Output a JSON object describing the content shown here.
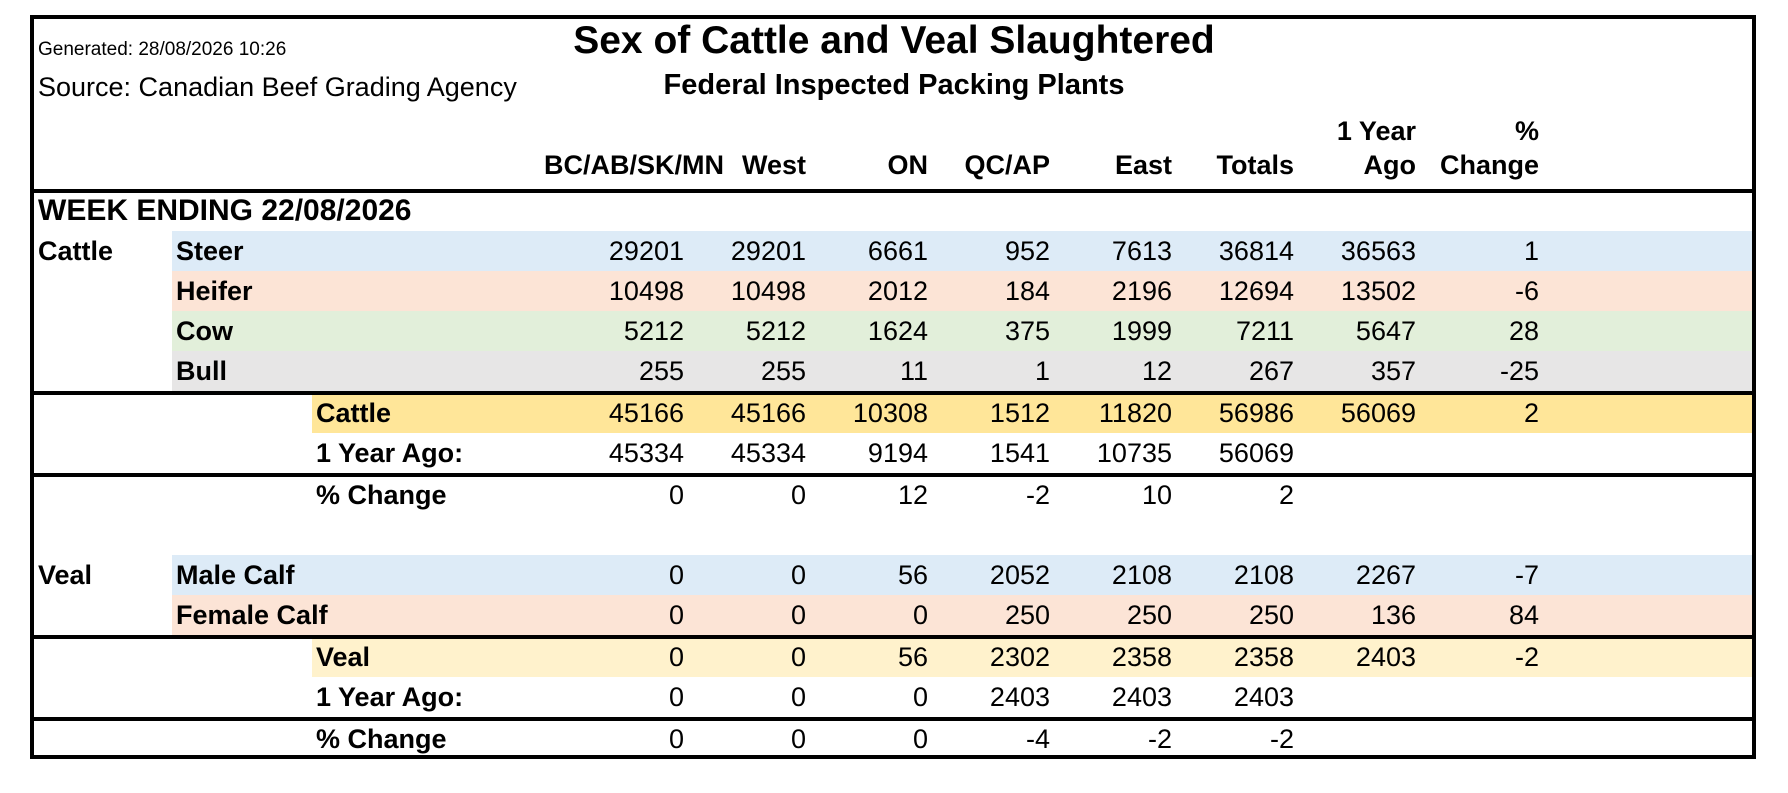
{
  "header": {
    "generated": "Generated: 28/08/2026 10:26",
    "source": "Source: Canadian Beef Grading Agency",
    "title": "Sex of Cattle and Veal Slaughtered",
    "subtitle": "Federal Inspected Packing Plants"
  },
  "columns": [
    {
      "line1": "",
      "line2": "BC/AB/SK/MN"
    },
    {
      "line1": "",
      "line2": "West"
    },
    {
      "line1": "",
      "line2": "ON"
    },
    {
      "line1": "",
      "line2": "QC/AP"
    },
    {
      "line1": "",
      "line2": "East"
    },
    {
      "line1": "",
      "line2": "Totals"
    },
    {
      "line1": "1 Year",
      "line2": "Ago"
    },
    {
      "line1": "%",
      "line2": "Change"
    }
  ],
  "week_ending": "WEEK ENDING 22/08/2026",
  "rows": [
    {
      "group": "Cattle",
      "label": "Steer",
      "indent": 1,
      "color": "#ddebf7",
      "values": [
        "29201",
        "29201",
        "6661",
        "952",
        "7613",
        "36814",
        "36563",
        "1"
      ]
    },
    {
      "group": "",
      "label": "Heifer",
      "indent": 1,
      "color": "#fce4d6",
      "values": [
        "10498",
        "10498",
        "2012",
        "184",
        "2196",
        "12694",
        "13502",
        "-6"
      ]
    },
    {
      "group": "",
      "label": "Cow",
      "indent": 1,
      "color": "#e2efda",
      "values": [
        "5212",
        "5212",
        "1624",
        "375",
        "1999",
        "7211",
        "5647",
        "28"
      ]
    },
    {
      "group": "",
      "label": "Bull",
      "indent": 1,
      "color": "#e7e6e6",
      "values": [
        "255",
        "255",
        "11",
        "1",
        "12",
        "267",
        "357",
        "-25"
      ]
    },
    {
      "group": "",
      "label": "Cattle",
      "indent": 2,
      "color": "#ffe699",
      "values": [
        "45166",
        "45166",
        "10308",
        "1512",
        "11820",
        "56986",
        "56069",
        "2"
      ]
    },
    {
      "group": "",
      "label": "1 Year Ago:",
      "indent": 2,
      "color": "",
      "values": [
        "45334",
        "45334",
        "9194",
        "1541",
        "10735",
        "56069",
        "",
        ""
      ]
    },
    {
      "group": "",
      "label": "% Change",
      "indent": 2,
      "color": "",
      "values": [
        "0",
        "0",
        "12",
        "-2",
        "10",
        "2",
        "",
        ""
      ]
    },
    {
      "group": "Veal",
      "label": "Male Calf",
      "indent": 1,
      "color": "#ddebf7",
      "values": [
        "0",
        "0",
        "56",
        "2052",
        "2108",
        "2108",
        "2267",
        "-7"
      ]
    },
    {
      "group": "",
      "label": "Female Calf",
      "indent": 1,
      "color": "#fce4d6",
      "values": [
        "0",
        "0",
        "0",
        "250",
        "250",
        "250",
        "136",
        "84"
      ]
    },
    {
      "group": "",
      "label": "Veal",
      "indent": 2,
      "color": "#fff2cc",
      "values": [
        "0",
        "0",
        "56",
        "2302",
        "2358",
        "2358",
        "2403",
        "-2"
      ]
    },
    {
      "group": "",
      "label": "1 Year Ago:",
      "indent": 2,
      "color": "",
      "values": [
        "0",
        "0",
        "0",
        "2403",
        "2403",
        "2403",
        "",
        ""
      ]
    },
    {
      "group": "",
      "label": "% Change",
      "indent": 2,
      "color": "",
      "values": [
        "0",
        "0",
        "0",
        "-4",
        "-2",
        "-2",
        "",
        ""
      ]
    }
  ]
}
